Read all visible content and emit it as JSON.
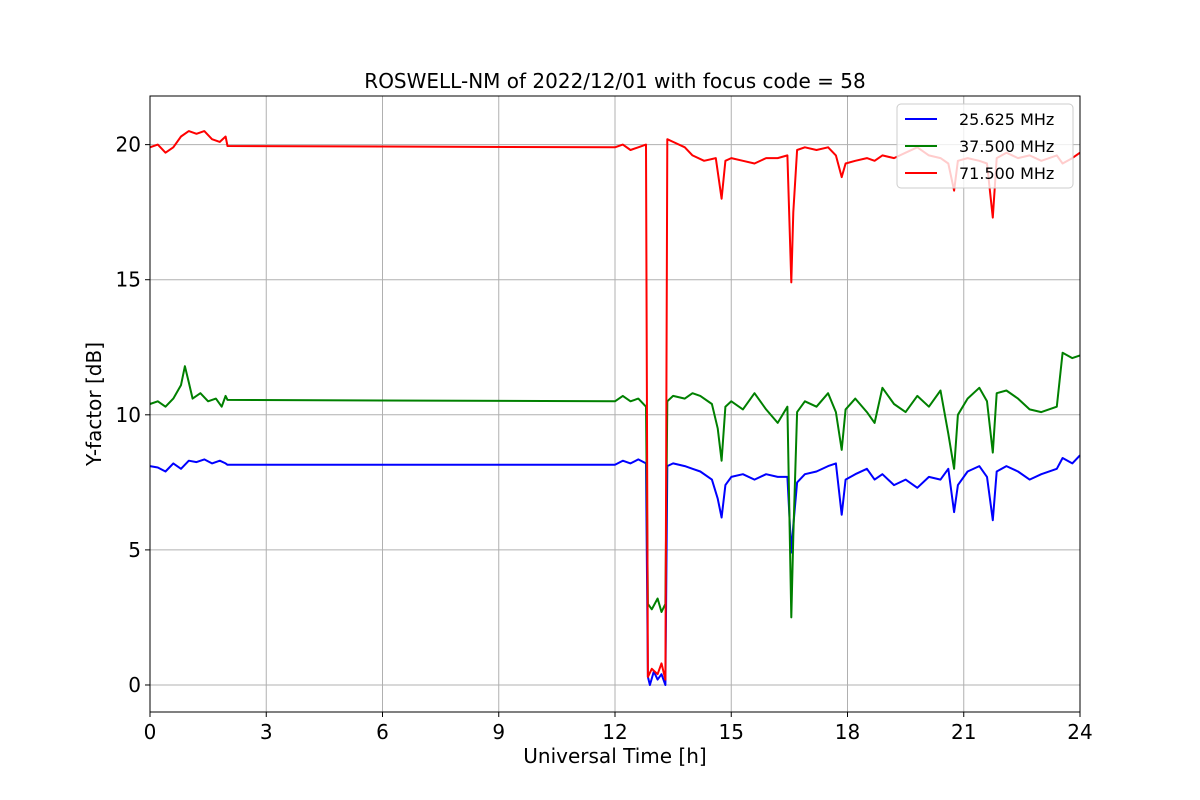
{
  "chart_data": {
    "type": "line",
    "title": "ROSWELL-NM of 2022/12/01 with focus code = 58",
    "xlabel": "Universal Time [h]",
    "ylabel": "Y-factor [dB]",
    "xlim": [
      0,
      24
    ],
    "ylim": [
      -1,
      21.8
    ],
    "xticks": [
      0,
      3,
      6,
      9,
      12,
      15,
      18,
      21,
      24
    ],
    "yticks": [
      0,
      5,
      10,
      15,
      20
    ],
    "grid": true,
    "legend_position": "top-right",
    "series": [
      {
        "name": "25.625 MHz",
        "color": "#0000ff",
        "points": [
          [
            0.0,
            8.1
          ],
          [
            0.2,
            8.05
          ],
          [
            0.4,
            7.9
          ],
          [
            0.6,
            8.2
          ],
          [
            0.8,
            8.0
          ],
          [
            1.0,
            8.3
          ],
          [
            1.2,
            8.25
          ],
          [
            1.4,
            8.35
          ],
          [
            1.6,
            8.2
          ],
          [
            1.8,
            8.3
          ],
          [
            1.95,
            8.2
          ],
          [
            2.0,
            8.15
          ],
          [
            12.0,
            8.15
          ],
          [
            12.2,
            8.3
          ],
          [
            12.4,
            8.2
          ],
          [
            12.6,
            8.35
          ],
          [
            12.8,
            8.2
          ],
          [
            12.85,
            0.3
          ],
          [
            12.9,
            0.0
          ],
          [
            13.0,
            0.5
          ],
          [
            13.1,
            0.2
          ],
          [
            13.2,
            0.4
          ],
          [
            13.3,
            0.0
          ],
          [
            13.35,
            8.1
          ],
          [
            13.5,
            8.2
          ],
          [
            13.8,
            8.1
          ],
          [
            14.0,
            8.0
          ],
          [
            14.2,
            7.9
          ],
          [
            14.5,
            7.6
          ],
          [
            14.65,
            6.9
          ],
          [
            14.75,
            6.2
          ],
          [
            14.85,
            7.4
          ],
          [
            15.0,
            7.7
          ],
          [
            15.3,
            7.8
          ],
          [
            15.6,
            7.6
          ],
          [
            15.9,
            7.8
          ],
          [
            16.2,
            7.7
          ],
          [
            16.45,
            7.7
          ],
          [
            16.55,
            4.9
          ],
          [
            16.6,
            5.9
          ],
          [
            16.7,
            7.5
          ],
          [
            16.9,
            7.8
          ],
          [
            17.2,
            7.9
          ],
          [
            17.5,
            8.1
          ],
          [
            17.7,
            8.2
          ],
          [
            17.85,
            6.3
          ],
          [
            17.95,
            7.6
          ],
          [
            18.2,
            7.8
          ],
          [
            18.5,
            8.0
          ],
          [
            18.7,
            7.6
          ],
          [
            18.9,
            7.8
          ],
          [
            19.2,
            7.4
          ],
          [
            19.5,
            7.6
          ],
          [
            19.8,
            7.3
          ],
          [
            20.1,
            7.7
          ],
          [
            20.4,
            7.6
          ],
          [
            20.6,
            8.0
          ],
          [
            20.75,
            6.4
          ],
          [
            20.85,
            7.4
          ],
          [
            21.1,
            7.9
          ],
          [
            21.4,
            8.1
          ],
          [
            21.6,
            7.7
          ],
          [
            21.75,
            6.1
          ],
          [
            21.85,
            7.9
          ],
          [
            22.1,
            8.1
          ],
          [
            22.4,
            7.9
          ],
          [
            22.7,
            7.6
          ],
          [
            23.0,
            7.8
          ],
          [
            23.4,
            8.0
          ],
          [
            23.55,
            8.4
          ],
          [
            23.8,
            8.2
          ],
          [
            24.0,
            8.5
          ]
        ]
      },
      {
        "name": "37.500 MHz",
        "color": "#008000",
        "points": [
          [
            0.0,
            10.4
          ],
          [
            0.2,
            10.5
          ],
          [
            0.4,
            10.3
          ],
          [
            0.6,
            10.6
          ],
          [
            0.8,
            11.1
          ],
          [
            0.9,
            11.8
          ],
          [
            1.0,
            11.2
          ],
          [
            1.1,
            10.6
          ],
          [
            1.3,
            10.8
          ],
          [
            1.5,
            10.5
          ],
          [
            1.7,
            10.6
          ],
          [
            1.85,
            10.3
          ],
          [
            1.95,
            10.7
          ],
          [
            2.0,
            10.55
          ],
          [
            12.0,
            10.5
          ],
          [
            12.2,
            10.7
          ],
          [
            12.4,
            10.5
          ],
          [
            12.6,
            10.6
          ],
          [
            12.8,
            10.3
          ],
          [
            12.85,
            3.0
          ],
          [
            12.95,
            2.8
          ],
          [
            13.1,
            3.2
          ],
          [
            13.2,
            2.7
          ],
          [
            13.3,
            3.0
          ],
          [
            13.35,
            10.5
          ],
          [
            13.5,
            10.7
          ],
          [
            13.8,
            10.6
          ],
          [
            14.0,
            10.8
          ],
          [
            14.2,
            10.7
          ],
          [
            14.5,
            10.4
          ],
          [
            14.65,
            9.5
          ],
          [
            14.75,
            8.3
          ],
          [
            14.85,
            10.3
          ],
          [
            15.0,
            10.5
          ],
          [
            15.3,
            10.2
          ],
          [
            15.6,
            10.8
          ],
          [
            15.9,
            10.2
          ],
          [
            16.2,
            9.7
          ],
          [
            16.45,
            10.3
          ],
          [
            16.55,
            2.5
          ],
          [
            16.6,
            5.5
          ],
          [
            16.7,
            10.1
          ],
          [
            16.9,
            10.5
          ],
          [
            17.2,
            10.3
          ],
          [
            17.5,
            10.8
          ],
          [
            17.7,
            10.1
          ],
          [
            17.85,
            8.7
          ],
          [
            17.95,
            10.2
          ],
          [
            18.2,
            10.6
          ],
          [
            18.5,
            10.1
          ],
          [
            18.7,
            9.7
          ],
          [
            18.9,
            11.0
          ],
          [
            19.2,
            10.4
          ],
          [
            19.5,
            10.1
          ],
          [
            19.8,
            10.7
          ],
          [
            20.1,
            10.3
          ],
          [
            20.4,
            10.9
          ],
          [
            20.6,
            9.3
          ],
          [
            20.75,
            8.0
          ],
          [
            20.85,
            10.0
          ],
          [
            21.1,
            10.6
          ],
          [
            21.4,
            11.0
          ],
          [
            21.6,
            10.5
          ],
          [
            21.75,
            8.6
          ],
          [
            21.85,
            10.8
          ],
          [
            22.1,
            10.9
          ],
          [
            22.4,
            10.6
          ],
          [
            22.7,
            10.2
          ],
          [
            23.0,
            10.1
          ],
          [
            23.4,
            10.3
          ],
          [
            23.55,
            12.3
          ],
          [
            23.8,
            12.1
          ],
          [
            24.0,
            12.2
          ]
        ]
      },
      {
        "name": "71.500 MHz",
        "color": "#ff0000",
        "points": [
          [
            0.0,
            19.9
          ],
          [
            0.2,
            20.0
          ],
          [
            0.4,
            19.7
          ],
          [
            0.6,
            19.9
          ],
          [
            0.8,
            20.3
          ],
          [
            1.0,
            20.5
          ],
          [
            1.2,
            20.4
          ],
          [
            1.4,
            20.5
          ],
          [
            1.6,
            20.2
          ],
          [
            1.8,
            20.1
          ],
          [
            1.95,
            20.3
          ],
          [
            2.0,
            19.95
          ],
          [
            12.0,
            19.9
          ],
          [
            12.2,
            20.0
          ],
          [
            12.4,
            19.8
          ],
          [
            12.6,
            19.9
          ],
          [
            12.8,
            20.0
          ],
          [
            12.85,
            0.3
          ],
          [
            12.95,
            0.6
          ],
          [
            13.1,
            0.4
          ],
          [
            13.2,
            0.8
          ],
          [
            13.3,
            0.2
          ],
          [
            13.35,
            20.2
          ],
          [
            13.5,
            20.1
          ],
          [
            13.8,
            19.9
          ],
          [
            14.0,
            19.6
          ],
          [
            14.3,
            19.4
          ],
          [
            14.6,
            19.5
          ],
          [
            14.75,
            18.0
          ],
          [
            14.85,
            19.4
          ],
          [
            15.0,
            19.5
          ],
          [
            15.3,
            19.4
          ],
          [
            15.6,
            19.3
          ],
          [
            15.9,
            19.5
          ],
          [
            16.2,
            19.5
          ],
          [
            16.45,
            19.6
          ],
          [
            16.55,
            14.9
          ],
          [
            16.6,
            17.5
          ],
          [
            16.7,
            19.8
          ],
          [
            16.9,
            19.9
          ],
          [
            17.2,
            19.8
          ],
          [
            17.5,
            19.9
          ],
          [
            17.7,
            19.6
          ],
          [
            17.85,
            18.8
          ],
          [
            17.95,
            19.3
          ],
          [
            18.2,
            19.4
          ],
          [
            18.5,
            19.5
          ],
          [
            18.7,
            19.4
          ],
          [
            18.9,
            19.6
          ],
          [
            19.2,
            19.5
          ],
          [
            19.5,
            19.7
          ],
          [
            19.8,
            19.9
          ],
          [
            20.1,
            19.6
          ],
          [
            20.4,
            19.5
          ],
          [
            20.6,
            19.3
          ],
          [
            20.75,
            18.3
          ],
          [
            20.85,
            19.4
          ],
          [
            21.1,
            19.5
          ],
          [
            21.4,
            19.4
          ],
          [
            21.6,
            19.3
          ],
          [
            21.75,
            17.3
          ],
          [
            21.85,
            19.5
          ],
          [
            22.1,
            19.7
          ],
          [
            22.4,
            19.5
          ],
          [
            22.7,
            19.6
          ],
          [
            23.0,
            19.4
          ],
          [
            23.4,
            19.6
          ],
          [
            23.55,
            19.3
          ],
          [
            23.8,
            19.5
          ],
          [
            24.0,
            19.7
          ]
        ]
      }
    ]
  }
}
